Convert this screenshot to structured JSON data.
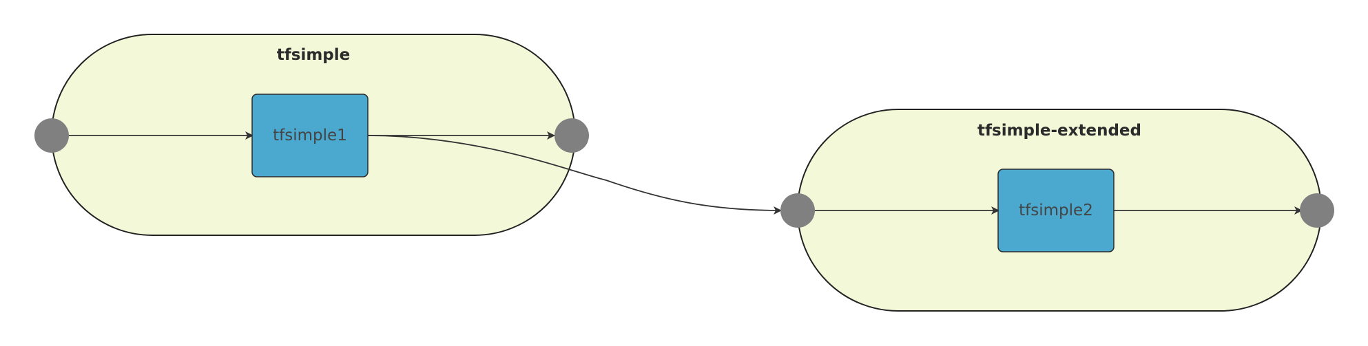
{
  "diagram": {
    "type": "pipeline-flow",
    "colors": {
      "group_fill": "#f3f8d8",
      "task_fill": "#4ba9d0",
      "port_fill": "#808080",
      "edge": "#333333"
    },
    "groups": [
      {
        "id": "g1",
        "title": "tfsimple",
        "tasks": [
          "tfsimple1"
        ]
      },
      {
        "id": "g2",
        "title": "tfsimple-extended",
        "tasks": [
          "tfsimple2"
        ]
      }
    ],
    "tasks": [
      {
        "id": "tfsimple1",
        "label": "tfsimple1"
      },
      {
        "id": "tfsimple2",
        "label": "tfsimple2"
      }
    ],
    "edges": [
      {
        "from": "g1-input",
        "to": "tfsimple1"
      },
      {
        "from": "tfsimple1",
        "to": "g1-output"
      },
      {
        "from": "tfsimple1",
        "to": "g2-input"
      },
      {
        "from": "g2-input",
        "to": "tfsimple2"
      },
      {
        "from": "tfsimple2",
        "to": "g2-output"
      }
    ]
  }
}
